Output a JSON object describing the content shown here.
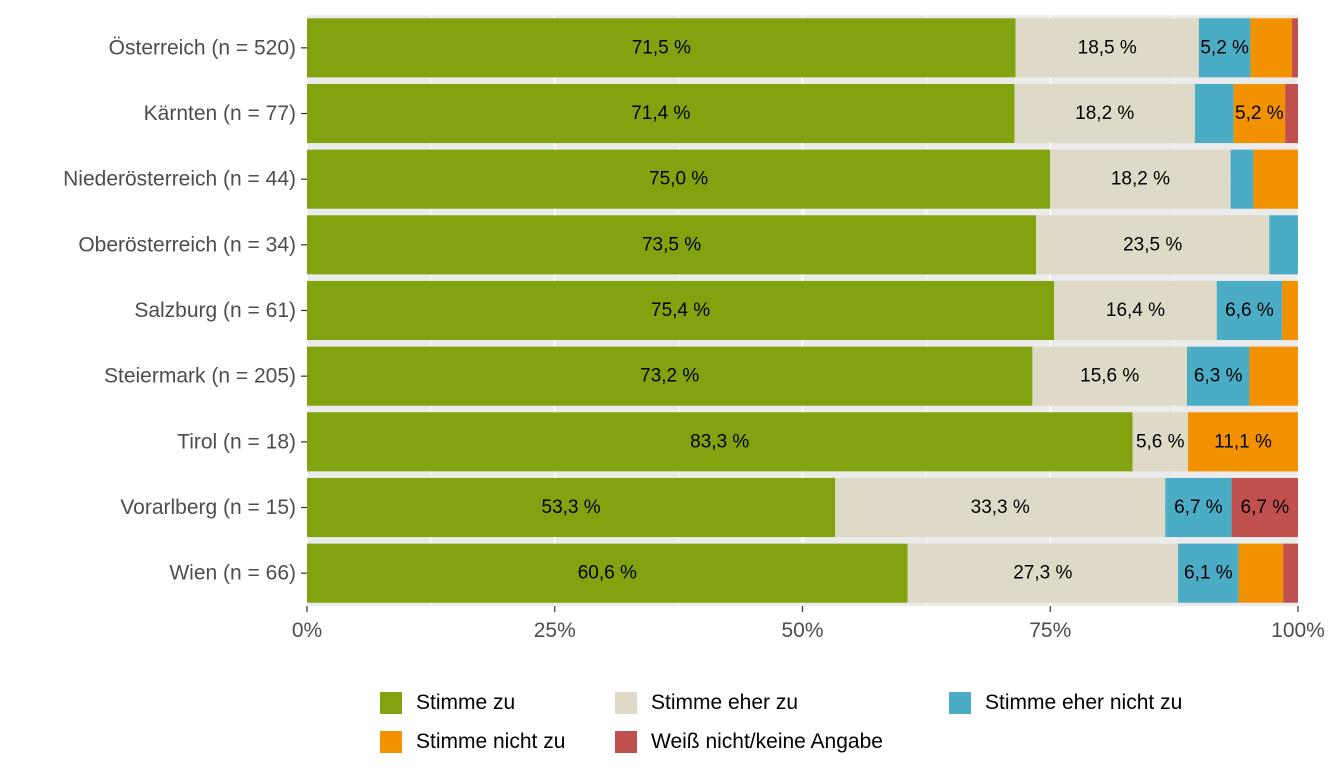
{
  "chart_data": {
    "type": "bar",
    "orientation": "horizontal",
    "stacked": true,
    "normalized": true,
    "categories": [
      "Österreich (n = 520)",
      "Kärnten (n = 77)",
      "Niederösterreich (n = 44)",
      "Oberösterreich (n = 34)",
      "Salzburg (n = 61)",
      "Steiermark (n = 205)",
      "Tirol (n = 18)",
      "Vorarlberg (n = 15)",
      "Wien (n = 66)"
    ],
    "series": [
      {
        "name": "Stimme zu",
        "color": "#82a310",
        "values": [
          71.5,
          71.4,
          75.0,
          73.5,
          75.4,
          73.2,
          83.3,
          53.3,
          60.6
        ],
        "labels": [
          "71,5 %",
          "71,4 %",
          "75,0 %",
          "73,5 %",
          "75,4 %",
          "73,2 %",
          "83,3 %",
          "53,3 %",
          "60,6 %"
        ]
      },
      {
        "name": "Stimme eher zu",
        "color": "#dfdac7",
        "values": [
          18.5,
          18.2,
          18.2,
          23.5,
          16.4,
          15.6,
          5.6,
          33.3,
          27.3
        ],
        "labels": [
          "18,5 %",
          "18,2 %",
          "18,2 %",
          "23,5 %",
          "16,4 %",
          "15,6 %",
          "5,6 %",
          "33,3 %",
          "27,3 %"
        ]
      },
      {
        "name": "Stimme eher nicht zu",
        "color": "#4bacc6",
        "values": [
          5.2,
          3.9,
          2.3,
          2.9,
          6.6,
          6.3,
          0,
          6.7,
          6.1
        ],
        "labels": [
          "5,2 %",
          "",
          "",
          "",
          "6,6 %",
          "6,3 %",
          "",
          "6,7 %",
          "6,1 %"
        ]
      },
      {
        "name": "Stimme nicht zu",
        "color": "#f39200",
        "values": [
          4.2,
          5.2,
          4.5,
          0,
          1.6,
          4.9,
          11.1,
          0,
          4.5
        ],
        "labels": [
          "",
          "5,2 %",
          "",
          "",
          "",
          "",
          "11,1 %",
          "",
          ""
        ]
      },
      {
        "name": "Weiß nicht/keine Angabe",
        "color": "#c0504d",
        "values": [
          0.6,
          1.3,
          0,
          0,
          0,
          0,
          0,
          6.7,
          1.5
        ],
        "labels": [
          "",
          "",
          "",
          "",
          "",
          "",
          "",
          "6,7 %",
          ""
        ]
      }
    ],
    "xlim": [
      0,
      100
    ],
    "xticks": [
      "0%",
      "25%",
      "50%",
      "75%",
      "100%"
    ],
    "grid": true,
    "legend_position": "bottom"
  }
}
